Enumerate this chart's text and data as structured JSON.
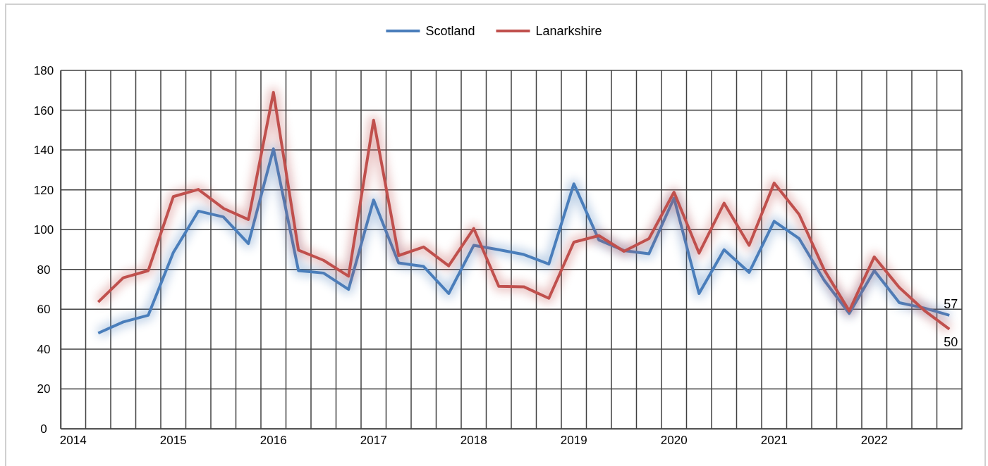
{
  "chart_data": {
    "type": "line",
    "categories": [
      "2014",
      null,
      null,
      null,
      "2015",
      null,
      null,
      null,
      "2016",
      null,
      null,
      null,
      "2017",
      null,
      null,
      null,
      "2018",
      null,
      null,
      null,
      "2019",
      null,
      null,
      null,
      "2020",
      null,
      null,
      null,
      "2021",
      null,
      null,
      null,
      "2022",
      null,
      null,
      null
    ],
    "series": [
      {
        "name": "Scotland",
        "color": "#4a7ebb",
        "values": [
          null,
          48,
          53.6,
          57,
          88.5,
          109.3,
          106.4,
          93,
          140.6,
          79.4,
          78.2,
          70,
          114.9,
          83.3,
          81.5,
          67.9,
          92.1,
          89.9,
          87.5,
          82.7,
          123,
          94.8,
          89.5,
          87.9,
          115.8,
          67.9,
          89.9,
          78.5,
          104.2,
          95.5,
          74.5,
          57.9,
          79.4,
          63.3,
          60.6,
          57
        ],
        "value_labels": [
          null,
          null,
          null,
          null,
          null,
          null,
          null,
          null,
          null,
          null,
          null,
          null,
          null,
          null,
          null,
          null,
          null,
          null,
          null,
          null,
          null,
          null,
          null,
          null,
          null,
          null,
          null,
          null,
          null,
          null,
          null,
          null,
          null,
          null,
          null,
          "57"
        ]
      },
      {
        "name": "Lanarkshire",
        "color": "#c0504d",
        "values": [
          null,
          63.6,
          75.8,
          79.4,
          116.6,
          120.2,
          110.7,
          105.1,
          169,
          89.7,
          84.6,
          76.6,
          155,
          87,
          91.3,
          81.8,
          100.6,
          71.5,
          71.3,
          65.5,
          93.7,
          97,
          89.1,
          95.5,
          118.8,
          88.2,
          113.3,
          92.1,
          123.4,
          107.6,
          79.8,
          59.2,
          86.3,
          70.9,
          59.4,
          50
        ],
        "value_labels": [
          null,
          null,
          null,
          null,
          null,
          null,
          null,
          null,
          null,
          null,
          null,
          null,
          null,
          null,
          null,
          null,
          null,
          null,
          null,
          null,
          null,
          null,
          null,
          null,
          null,
          null,
          null,
          null,
          null,
          null,
          null,
          null,
          null,
          null,
          null,
          "50"
        ]
      }
    ],
    "ylim": [
      0,
      180
    ],
    "yticks": [
      0,
      20,
      40,
      60,
      80,
      100,
      120,
      140,
      160,
      180
    ],
    "grid": true,
    "legend": "top",
    "marker": "none",
    "line_style": "solid"
  }
}
